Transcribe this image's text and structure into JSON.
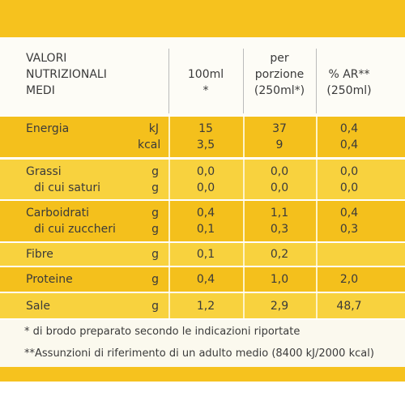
{
  "header": {
    "name": [
      "VALORI",
      "NUTRIZIONALI",
      "MEDI"
    ],
    "per100": [
      "100ml",
      "*"
    ],
    "portion": [
      "per",
      "porzione",
      "(250ml*)"
    ],
    "ar": [
      "% AR**",
      "(250ml)"
    ]
  },
  "rows": [
    {
      "label": [
        "Energia"
      ],
      "units": [
        "kJ",
        "kcal"
      ],
      "per100": [
        "15",
        "3,5"
      ],
      "portion": [
        "37",
        "9"
      ],
      "ar": [
        "0,4",
        "0,4"
      ]
    },
    {
      "label": [
        "Grassi",
        "di cui saturi"
      ],
      "units": [
        "g",
        "g"
      ],
      "per100": [
        "0,0",
        "0,0"
      ],
      "portion": [
        "0,0",
        "0,0"
      ],
      "ar": [
        "0,0",
        "0,0"
      ]
    },
    {
      "label": [
        "Carboidrati",
        "di cui zuccheri"
      ],
      "units": [
        "g",
        "g"
      ],
      "per100": [
        "0,4",
        "0,1"
      ],
      "portion": [
        "1,1",
        "0,3"
      ],
      "ar": [
        "0,4",
        "0,3"
      ]
    },
    {
      "label": [
        "Fibre"
      ],
      "units": [
        "g"
      ],
      "per100": [
        "0,1"
      ],
      "portion": [
        "0,2"
      ],
      "ar": []
    },
    {
      "label": [
        "Proteine"
      ],
      "units": [
        "g"
      ],
      "per100": [
        "0,4"
      ],
      "portion": [
        "1,0"
      ],
      "ar": [
        "2,0"
      ]
    },
    {
      "label": [
        "Sale"
      ],
      "units": [
        "g"
      ],
      "per100": [
        "1,2"
      ],
      "portion": [
        "2,9"
      ],
      "ar": [
        "48,7"
      ]
    }
  ],
  "footnotes": [
    "*  di brodo preparato secondo le indicazioni riportate",
    "**Assunzioni di riferimento di un adulto medio (8400 kJ/2000 kcal)"
  ]
}
